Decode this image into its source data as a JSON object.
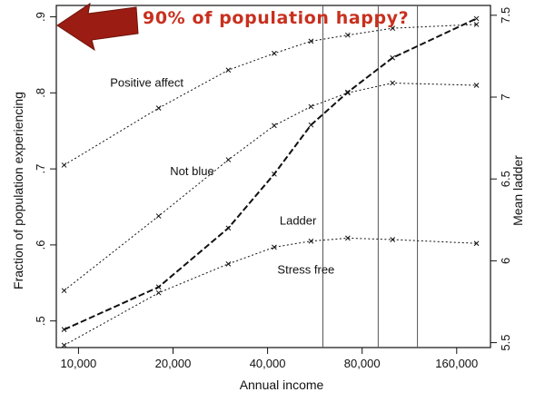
{
  "annotation": {
    "headline": "90% of population happy?",
    "arrow_color": "#9b1c12",
    "headline_color": "#c8301f"
  },
  "chart_data": {
    "type": "line",
    "x_scale": "log",
    "xlabel": "Annual income",
    "ylabel_left": "Fraction of population experiencing",
    "ylabel_right": "Mean ladder",
    "x_ticks": [
      10000,
      20000,
      40000,
      80000,
      160000
    ],
    "x_tick_labels": [
      "10,000",
      "20,000",
      "40,000",
      "80,000",
      "160,000"
    ],
    "xlim": [
      8500,
      205000
    ],
    "ylim_left": [
      0.465,
      0.915
    ],
    "y_ticks_left": [
      0.5,
      0.6,
      0.7,
      0.8,
      0.9
    ],
    "y_tick_labels_left": [
      ".5",
      ".6",
      ".7",
      ".8",
      ".9"
    ],
    "ylim_right": [
      5.47,
      7.56
    ],
    "y_ticks_right": [
      5.5,
      6,
      6.5,
      7,
      7.5
    ],
    "y_tick_labels_right": [
      "5.5",
      "6",
      "6.5",
      "7",
      "7.5"
    ],
    "vertical_lines_x": [
      60000,
      90000,
      120000
    ],
    "series": [
      {
        "name": "Positive affect",
        "axis": "left",
        "style": "dotted",
        "x": [
          9000,
          18000,
          30000,
          42000,
          55000,
          72000,
          100000,
          185000
        ],
        "y": [
          0.705,
          0.78,
          0.83,
          0.852,
          0.868,
          0.876,
          0.885,
          0.89
        ]
      },
      {
        "name": "Not blue",
        "axis": "left",
        "style": "dotted",
        "x": [
          9000,
          18000,
          30000,
          42000,
          55000,
          72000,
          100000,
          185000
        ],
        "y": [
          0.54,
          0.638,
          0.712,
          0.757,
          0.782,
          0.8,
          0.813,
          0.81
        ]
      },
      {
        "name": "Stress free",
        "axis": "left",
        "style": "dotted",
        "x": [
          9000,
          18000,
          30000,
          42000,
          55000,
          72000,
          100000,
          185000
        ],
        "y": [
          0.468,
          0.537,
          0.575,
          0.597,
          0.605,
          0.609,
          0.607,
          0.602
        ]
      },
      {
        "name": "Ladder",
        "axis": "right",
        "style": "dashed",
        "x": [
          9000,
          18000,
          30000,
          42000,
          55000,
          72000,
          100000,
          185000
        ],
        "y": [
          5.58,
          5.84,
          6.2,
          6.53,
          6.83,
          7.03,
          7.24,
          7.48
        ]
      }
    ],
    "series_label_anchors": [
      {
        "name": "Positive affect",
        "x": 16500,
        "y": 0.808
      },
      {
        "name": "Not blue",
        "x": 23000,
        "y": 0.692
      },
      {
        "name": "Ladder",
        "x": 50000,
        "y": 0.627
      },
      {
        "name": "Stress free",
        "x": 53000,
        "y": 0.562
      }
    ]
  }
}
